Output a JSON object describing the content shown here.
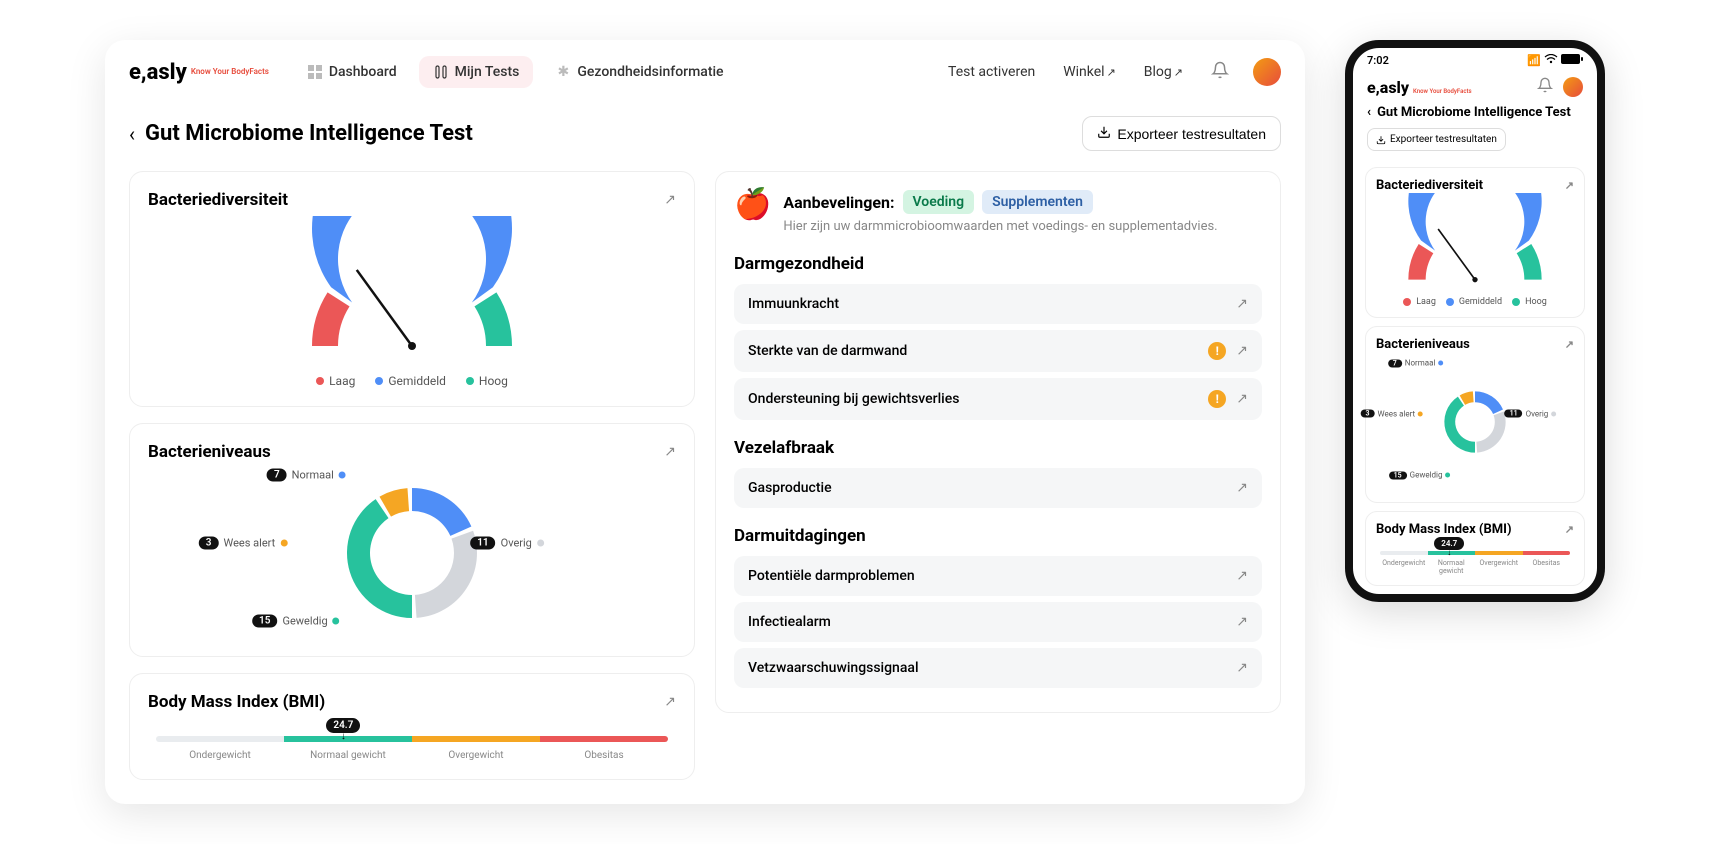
{
  "brand": {
    "name": "e,asly",
    "tagline": "Know Your BodyFacts"
  },
  "nav": {
    "dashboard": "Dashboard",
    "myTests": "Mijn Tests",
    "healthInfo": "Gezondheidsinformatie"
  },
  "topLinks": {
    "activate": "Test activeren",
    "shop": "Winkel",
    "blog": "Blog"
  },
  "page": {
    "title": "Gut Microbiome Intelligence Test",
    "exportLabel": "Exporteer testresultaten"
  },
  "colors": {
    "low": "#eb5757",
    "mid": "#4f8ef7",
    "high": "#27c29d",
    "alert": "#f5a623",
    "grey": "#d3d6db",
    "track": "#e9ecef"
  },
  "diversity": {
    "title": "Bacteriediversiteit",
    "legend": {
      "low": "Laag",
      "mid": "Gemiddeld",
      "high": "Hoog"
    },
    "segments": [
      {
        "key": "low",
        "fracStart": 0.0,
        "fracEnd": 0.18
      },
      {
        "key": "mid",
        "fracStart": 0.2,
        "fracEnd": 0.8
      },
      {
        "key": "high",
        "fracStart": 0.82,
        "fracEnd": 1.0
      }
    ],
    "needleFraction": 0.3
  },
  "levels": {
    "title": "Bacterieniveaus",
    "segments": [
      {
        "key": "mid",
        "label": "Normaal",
        "count": 7,
        "color": "#4f8ef7"
      },
      {
        "key": "grey",
        "label": "Overig",
        "count": 11,
        "color": "#d3d6db"
      },
      {
        "key": "high",
        "label": "Geweldig",
        "count": 15,
        "color": "#27c29d"
      },
      {
        "key": "alert",
        "label": "Wees alert",
        "count": 3,
        "color": "#f5a623"
      }
    ]
  },
  "bmi": {
    "title": "Body Mass Index (BMI)",
    "value": "24.7",
    "markerPercent": 37,
    "segments": [
      {
        "label": "Ondergewicht",
        "color": "#e9ecef",
        "flex": 1
      },
      {
        "label": "Normaal gewicht",
        "color": "#27c29d",
        "flex": 1
      },
      {
        "label": "Overgewicht",
        "color": "#f5a623",
        "flex": 1
      },
      {
        "label": "Obesitas",
        "color": "#eb5757",
        "flex": 1
      }
    ]
  },
  "reco": {
    "label": "Aanbevelingen:",
    "tagFood": "Voeding",
    "tagSupp": "Supplementen",
    "sub": "Hier zijn uw darmmicrobioomwaarden met voedings- en supplementadvies."
  },
  "sections": [
    {
      "title": "Darmgezondheid",
      "items": [
        {
          "label": "Immuunkracht",
          "warn": false
        },
        {
          "label": "Sterkte van de darmwand",
          "warn": true
        },
        {
          "label": "Ondersteuning bij gewichtsverlies",
          "warn": true
        }
      ]
    },
    {
      "title": "Vezelafbraak",
      "items": [
        {
          "label": "Gasproductie",
          "warn": false
        }
      ]
    },
    {
      "title": "Darmuitdagingen",
      "items": [
        {
          "label": "Potentiële darmproblemen",
          "warn": false
        },
        {
          "label": "Infectiealarm",
          "warn": false
        },
        {
          "label": "Vetzwaarschuwingssignaal",
          "warn": false
        }
      ]
    }
  ],
  "mobile": {
    "time": "7:02",
    "bmiNormalLabel": "Normaal gewicht"
  }
}
